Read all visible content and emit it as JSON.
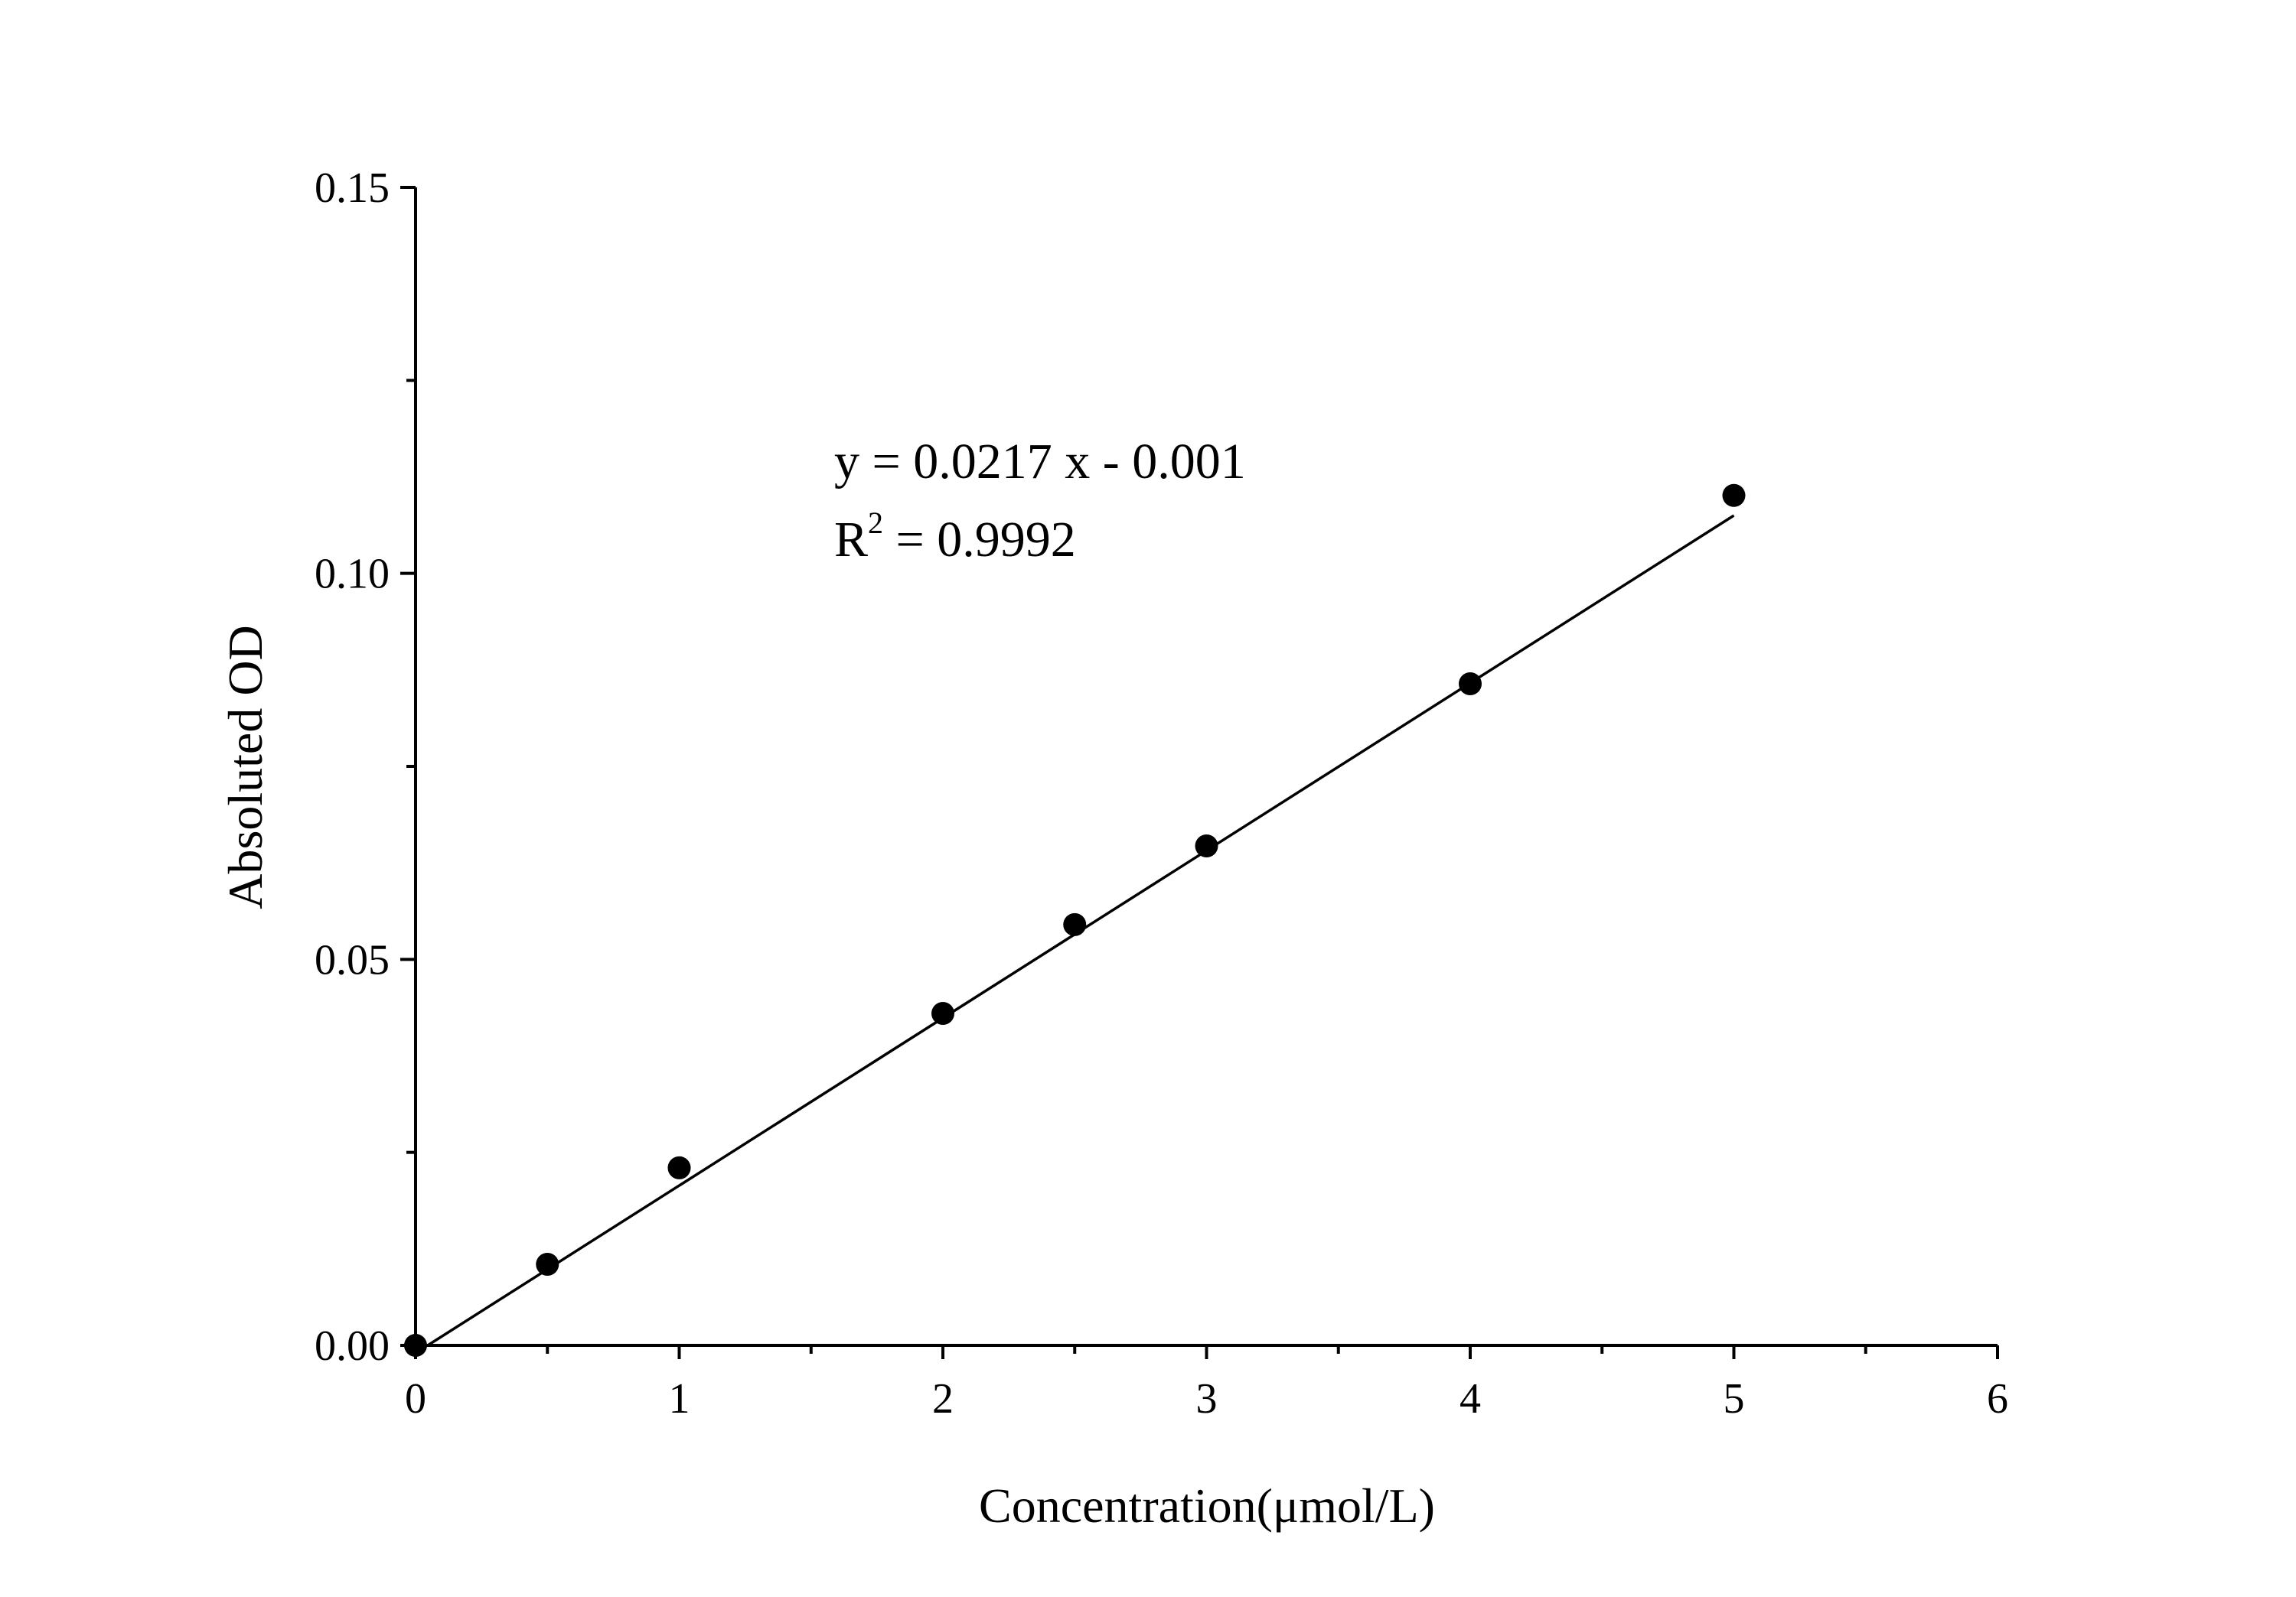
{
  "chart_data": {
    "type": "scatter",
    "title": "",
    "xlabel": "Concentration(μmol/L)",
    "ylabel": "Absoluted OD",
    "xlim": [
      0,
      6
    ],
    "ylim": [
      0,
      0.15
    ],
    "x_ticks": [
      0,
      1,
      2,
      3,
      4,
      5,
      6
    ],
    "x_tick_labels": [
      "0",
      "1",
      "2",
      "3",
      "4",
      "5",
      "6"
    ],
    "y_ticks": [
      0,
      0.05,
      0.1,
      0.15
    ],
    "y_tick_labels": [
      "0.00",
      "0.05",
      "0.10",
      "0.15"
    ],
    "grid": false,
    "series": [
      {
        "x": [
          0,
          0.5,
          1,
          2,
          2.5,
          3,
          4,
          5
        ],
        "y": [
          0.0,
          0.0105,
          0.023,
          0.043,
          0.0545,
          0.0647,
          0.0857,
          0.1101
        ]
      }
    ],
    "fit": {
      "slope": 0.0217,
      "intercept": -0.001,
      "x_range": [
        0,
        5
      ]
    },
    "annotation": {
      "equation": "y = 0.0217 x - 0.001",
      "r2_prefix": "R",
      "r2_sup": "2",
      "r2_value": " = 0.9992"
    }
  }
}
